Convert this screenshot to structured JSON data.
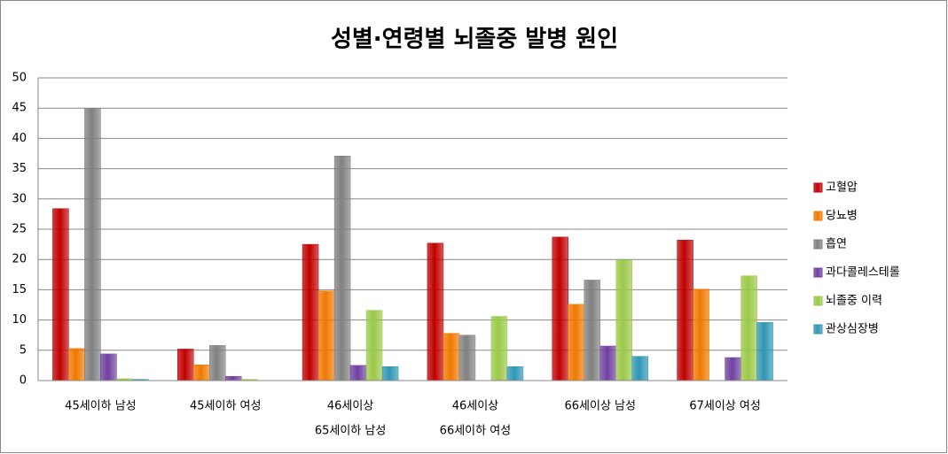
{
  "chart_data": {
    "type": "bar",
    "title": "성별·연령별 뇌졸중 발병 원인",
    "categories": [
      [
        "45세이하 남성"
      ],
      [
        "45세이하 여성"
      ],
      [
        "46세이상",
        "65세이하 남성"
      ],
      [
        "46세이상",
        "66세이하 여성"
      ],
      [
        "66세이상 남성"
      ],
      [
        "67세이상 여성"
      ]
    ],
    "series": [
      {
        "name": "고혈압",
        "color": "#c00000",
        "values": [
          28.4,
          5.2,
          22.5,
          22.7,
          23.7,
          23.2
        ]
      },
      {
        "name": "당뇨병",
        "color": "#f07800",
        "values": [
          5.3,
          2.6,
          14.8,
          7.8,
          12.6,
          15.1
        ]
      },
      {
        "name": "흡연",
        "color": "#808080",
        "values": [
          45,
          5.8,
          37.1,
          7.5,
          16.6,
          0
        ]
      },
      {
        "name": "과다콜레스테롤",
        "color": "#6f3fa0",
        "values": [
          4.4,
          0.7,
          2.5,
          0,
          5.7,
          3.8
        ]
      },
      {
        "name": "뇌졸중 이력",
        "color": "#9bc848",
        "values": [
          0.3,
          0.2,
          11.6,
          10.6,
          19.9,
          17.3
        ]
      },
      {
        "name": "관상심장병",
        "color": "#2f96b4",
        "values": [
          0.2,
          0,
          2.3,
          2.3,
          4.0,
          9.6
        ]
      }
    ],
    "ylim": [
      0,
      50
    ],
    "yticks": [
      0,
      5,
      10,
      15,
      20,
      25,
      30,
      35,
      40,
      45,
      50
    ],
    "grid": true,
    "legend": "right"
  }
}
